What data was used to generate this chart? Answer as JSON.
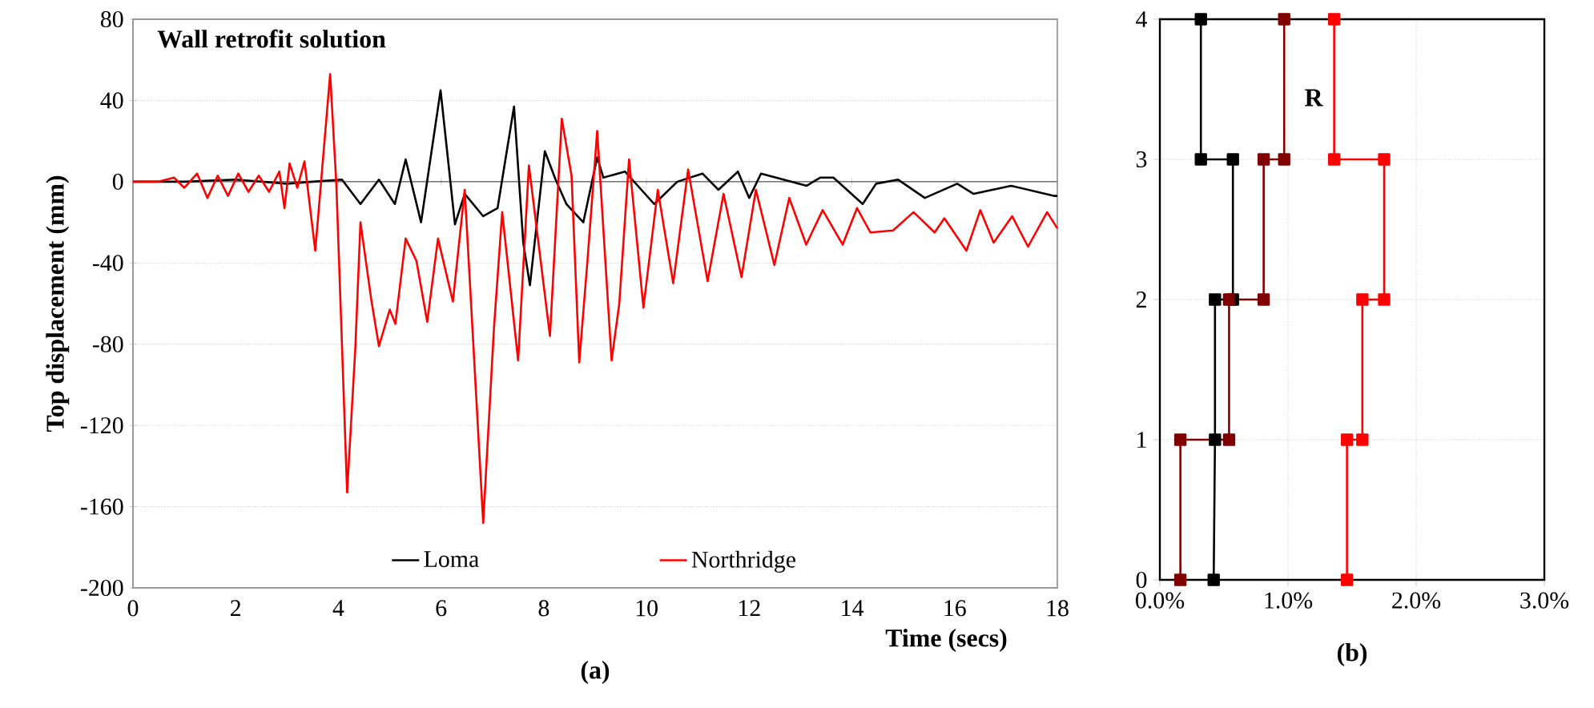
{
  "chart_data": [
    {
      "type": "line",
      "title": "Wall retrofit solution",
      "xlabel": "Time (secs)",
      "ylabel": "Top displacement (mm)",
      "xlim": [
        0,
        18
      ],
      "ylim": [
        -200,
        80
      ],
      "xticks": [
        0,
        2,
        4,
        6,
        8,
        10,
        12,
        14,
        16,
        18
      ],
      "yticks": [
        -200,
        -160,
        -120,
        -80,
        -40,
        0,
        40,
        80
      ],
      "grid": "y",
      "legend": "bottom",
      "annotations": [
        "(a)"
      ],
      "series": [
        {
          "name": "Loma",
          "color": "#000000",
          "x": [
            0,
            1,
            2,
            3,
            3.5,
            4.07,
            4.43,
            4.79,
            5.1,
            5.31,
            5.61,
            5.99,
            6.27,
            6.46,
            6.82,
            7.1,
            7.42,
            7.6,
            7.73,
            8.02,
            8.23,
            8.44,
            8.77,
            9.04,
            9.16,
            9.58,
            10.15,
            10.6,
            11.09,
            11.4,
            11.78,
            12.0,
            12.23,
            13.12,
            13.38,
            13.64,
            14.21,
            14.47,
            14.9,
            15.42,
            16.05,
            16.37,
            17.1,
            17.93,
            18
          ],
          "values": [
            0,
            0,
            1,
            -1,
            0,
            1,
            -11,
            1,
            -11,
            11,
            -20,
            45,
            -21,
            -6,
            -17,
            -13,
            37,
            -30,
            -51,
            15,
            1,
            -11,
            -20,
            12,
            2,
            5,
            -11,
            0,
            4,
            -4,
            5,
            -8,
            4,
            -2,
            2,
            2,
            -11,
            -1,
            1,
            -8,
            -1,
            -6,
            -2,
            -7,
            -7
          ]
        },
        {
          "name": "Northridge",
          "color": "#ff0000",
          "x": [
            0,
            0.5,
            0.8,
            1.0,
            1.25,
            1.45,
            1.65,
            1.85,
            2.05,
            2.25,
            2.45,
            2.65,
            2.85,
            2.95,
            3.05,
            3.2,
            3.34,
            3.55,
            3.84,
            3.96,
            4.17,
            4.33,
            4.43,
            4.64,
            4.79,
            5.0,
            5.11,
            5.31,
            5.52,
            5.73,
            5.94,
            6.23,
            6.46,
            6.61,
            6.82,
            7.03,
            7.19,
            7.5,
            7.71,
            8.12,
            8.35,
            8.54,
            8.69,
            8.85,
            9.04,
            9.32,
            9.47,
            9.66,
            9.94,
            10.22,
            10.52,
            10.81,
            11.19,
            11.5,
            11.85,
            12.13,
            12.49,
            12.78,
            13.11,
            13.43,
            13.82,
            14.1,
            14.36,
            14.8,
            15.2,
            15.61,
            15.8,
            16.23,
            16.5,
            16.76,
            17.12,
            17.43,
            17.8,
            18
          ],
          "values": [
            0,
            0,
            2,
            -3,
            4,
            -8,
            3,
            -7,
            4,
            -5,
            3,
            -5,
            5,
            -13,
            9,
            -3,
            10,
            -34,
            53,
            -1,
            -153,
            -82,
            -20,
            -58,
            -81,
            -63,
            -70,
            -28,
            -39,
            -69,
            -28,
            -59,
            -4,
            -72,
            -168,
            -72,
            -15,
            -88,
            8,
            -76,
            31,
            3,
            -89,
            -39,
            25,
            -88,
            -60,
            11,
            -62,
            -4,
            -50,
            6,
            -49,
            -6,
            -47,
            -4,
            -41,
            -8,
            -31,
            -14,
            -31,
            -13,
            -25,
            -24,
            -15,
            -25,
            -18,
            -34,
            -14,
            -30,
            -17,
            -32,
            -15,
            -23
          ]
        }
      ]
    },
    {
      "type": "line",
      "xlim": [
        0,
        3
      ],
      "ylim": [
        0,
        4
      ],
      "xticks": [
        {
          "value": 0,
          "label": "0.0%"
        },
        {
          "value": 1,
          "label": "1.0%"
        },
        {
          "value": 2,
          "label": "2.0%"
        },
        {
          "value": 3,
          "label": "3.0%"
        }
      ],
      "yticks": [
        0,
        1,
        2,
        3,
        4
      ],
      "grid": true,
      "marker": "square",
      "annotations": [
        "R",
        "(b)"
      ],
      "series": [
        {
          "color": "#000000",
          "x": [
            0.42,
            0.43,
            0.43,
            0.57,
            0.57,
            0.32,
            0.32
          ],
          "values": [
            0,
            1,
            2,
            2,
            3,
            3,
            4
          ]
        },
        {
          "color": "#800000",
          "x": [
            0.16,
            0.16,
            0.54,
            0.54,
            0.81,
            0.81,
            0.97,
            0.97
          ],
          "values": [
            0,
            1,
            1,
            2,
            2,
            3,
            3,
            4
          ]
        },
        {
          "color": "#ff0000",
          "x": [
            1.46,
            1.46,
            1.58,
            1.58,
            1.75,
            1.75,
            1.36,
            1.36
          ],
          "values": [
            0,
            1,
            1,
            2,
            2,
            3,
            3,
            4
          ]
        }
      ]
    }
  ]
}
